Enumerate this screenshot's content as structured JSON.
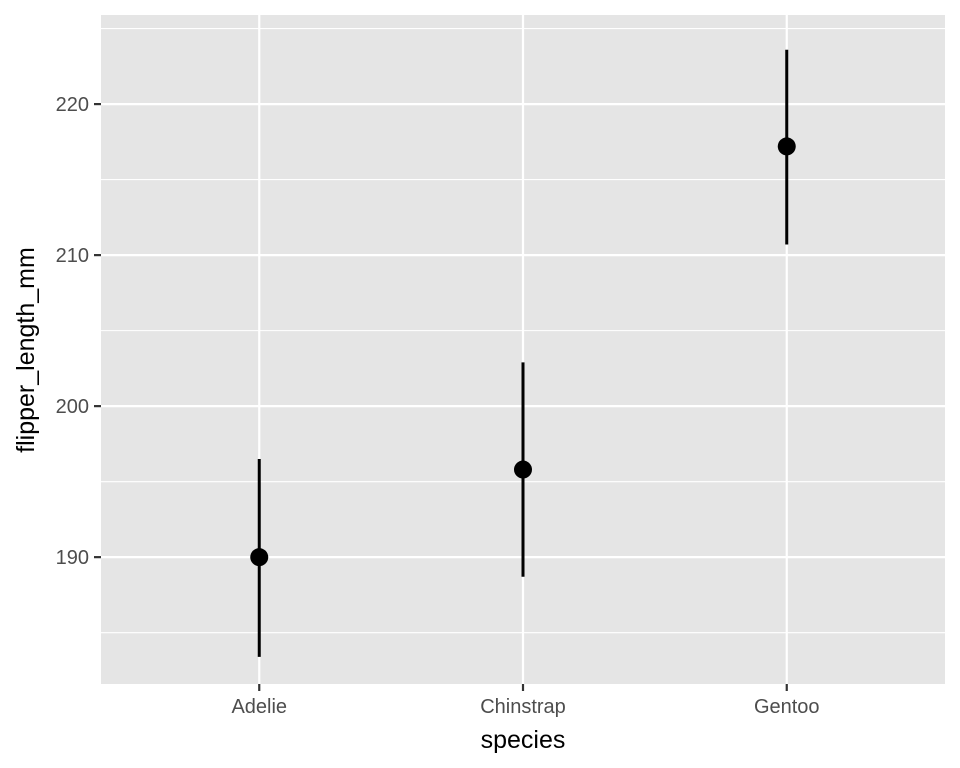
{
  "chart_data": {
    "type": "scatter",
    "xlabel": "species",
    "ylabel": "flipper_length_mm",
    "categories": [
      "Adelie",
      "Chinstrap",
      "Gentoo"
    ],
    "values": [
      190.0,
      195.8,
      217.2
    ],
    "error_low": [
      183.4,
      188.7,
      210.7
    ],
    "error_high": [
      196.5,
      202.9,
      223.6
    ],
    "yticks": [
      190,
      200,
      210,
      220
    ],
    "ylim": [
      181.6,
      225.9
    ],
    "grid": true,
    "legend": "none",
    "colors": {
      "panel": "#e5e5e5",
      "grid": "#ffffff",
      "mark": "#000000"
    }
  }
}
